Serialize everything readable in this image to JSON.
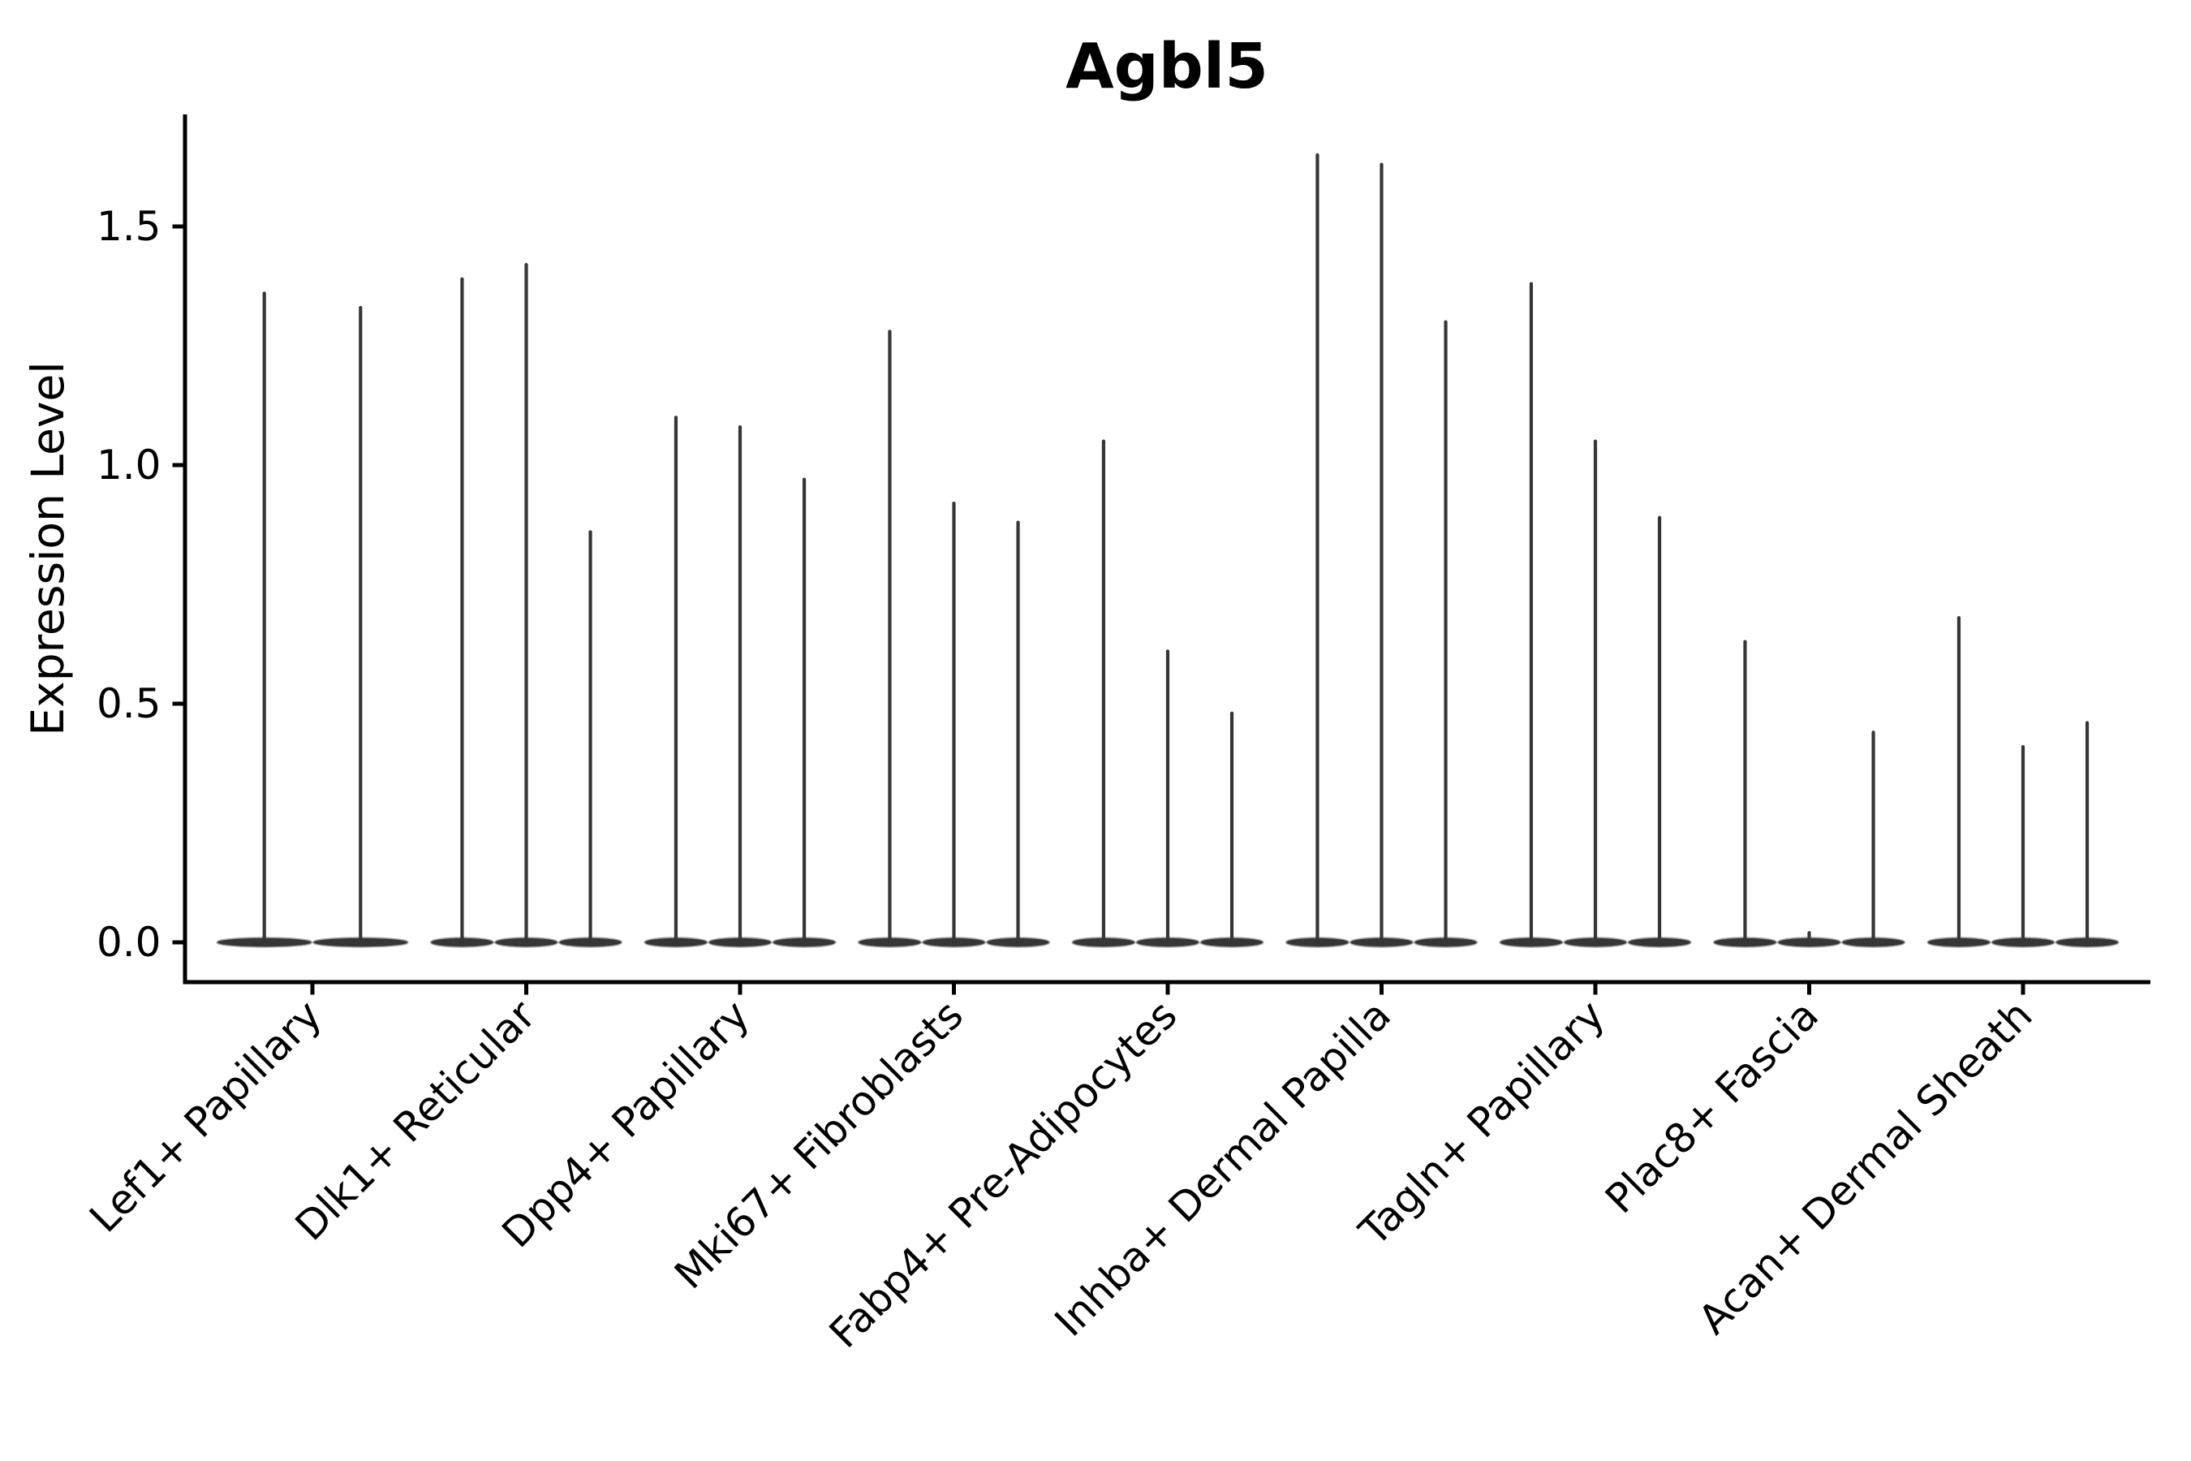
{
  "title": "Agbl5",
  "chart_data": {
    "type": "violin",
    "title": "Agbl5",
    "xlabel": "",
    "ylabel": "Expression Level",
    "yticks": [
      0.0,
      0.5,
      1.0,
      1.5
    ],
    "ylim": [
      -0.083,
      1.735
    ],
    "x_tick_rotation": 45,
    "grid": false,
    "legend": "none",
    "description": "Per-cluster expression violins; each category holds 2-3 narrow violins with dense mass at 0 (flat base) and a thin spike up to the max expression value.",
    "categories": [
      "Lef1+ Papillary",
      "Dlk1+ Reticular",
      "Dpp4+ Papillary",
      "Mki67+ Fibroblasts",
      "Fabp4+ Pre-Adipocytes",
      "Inhba+ Dermal Papilla",
      "Tagln+ Papillary",
      "Plac8+ Fascia",
      "Acan+ Dermal Sheath"
    ],
    "groups": [
      {
        "category": "Lef1+ Papillary",
        "violin_maxima": [
          1.36,
          1.33
        ]
      },
      {
        "category": "Dlk1+ Reticular",
        "violin_maxima": [
          1.39,
          1.42,
          0.86
        ]
      },
      {
        "category": "Dpp4+ Papillary",
        "violin_maxima": [
          1.1,
          1.08,
          0.97
        ]
      },
      {
        "category": "Mki67+ Fibroblasts",
        "violin_maxima": [
          1.28,
          0.92,
          0.88
        ]
      },
      {
        "category": "Fabp4+ Pre-Adipocytes",
        "violin_maxima": [
          1.05,
          0.61,
          0.48
        ]
      },
      {
        "category": "Inhba+ Dermal Papilla",
        "violin_maxima": [
          1.65,
          1.63,
          1.3
        ]
      },
      {
        "category": "Tagln+ Papillary",
        "violin_maxima": [
          1.38,
          1.05,
          0.89
        ]
      },
      {
        "category": "Plac8+ Fascia",
        "violin_maxima": [
          0.63,
          0.02,
          0.44
        ]
      },
      {
        "category": "Acan+ Dermal Sheath",
        "violin_maxima": [
          0.68,
          0.41,
          0.46
        ]
      }
    ],
    "group_total_width": 0.9,
    "colors": {
      "violin": "#363636",
      "axis": "#000000",
      "text": "#000000",
      "background": "#ffffff"
    }
  }
}
